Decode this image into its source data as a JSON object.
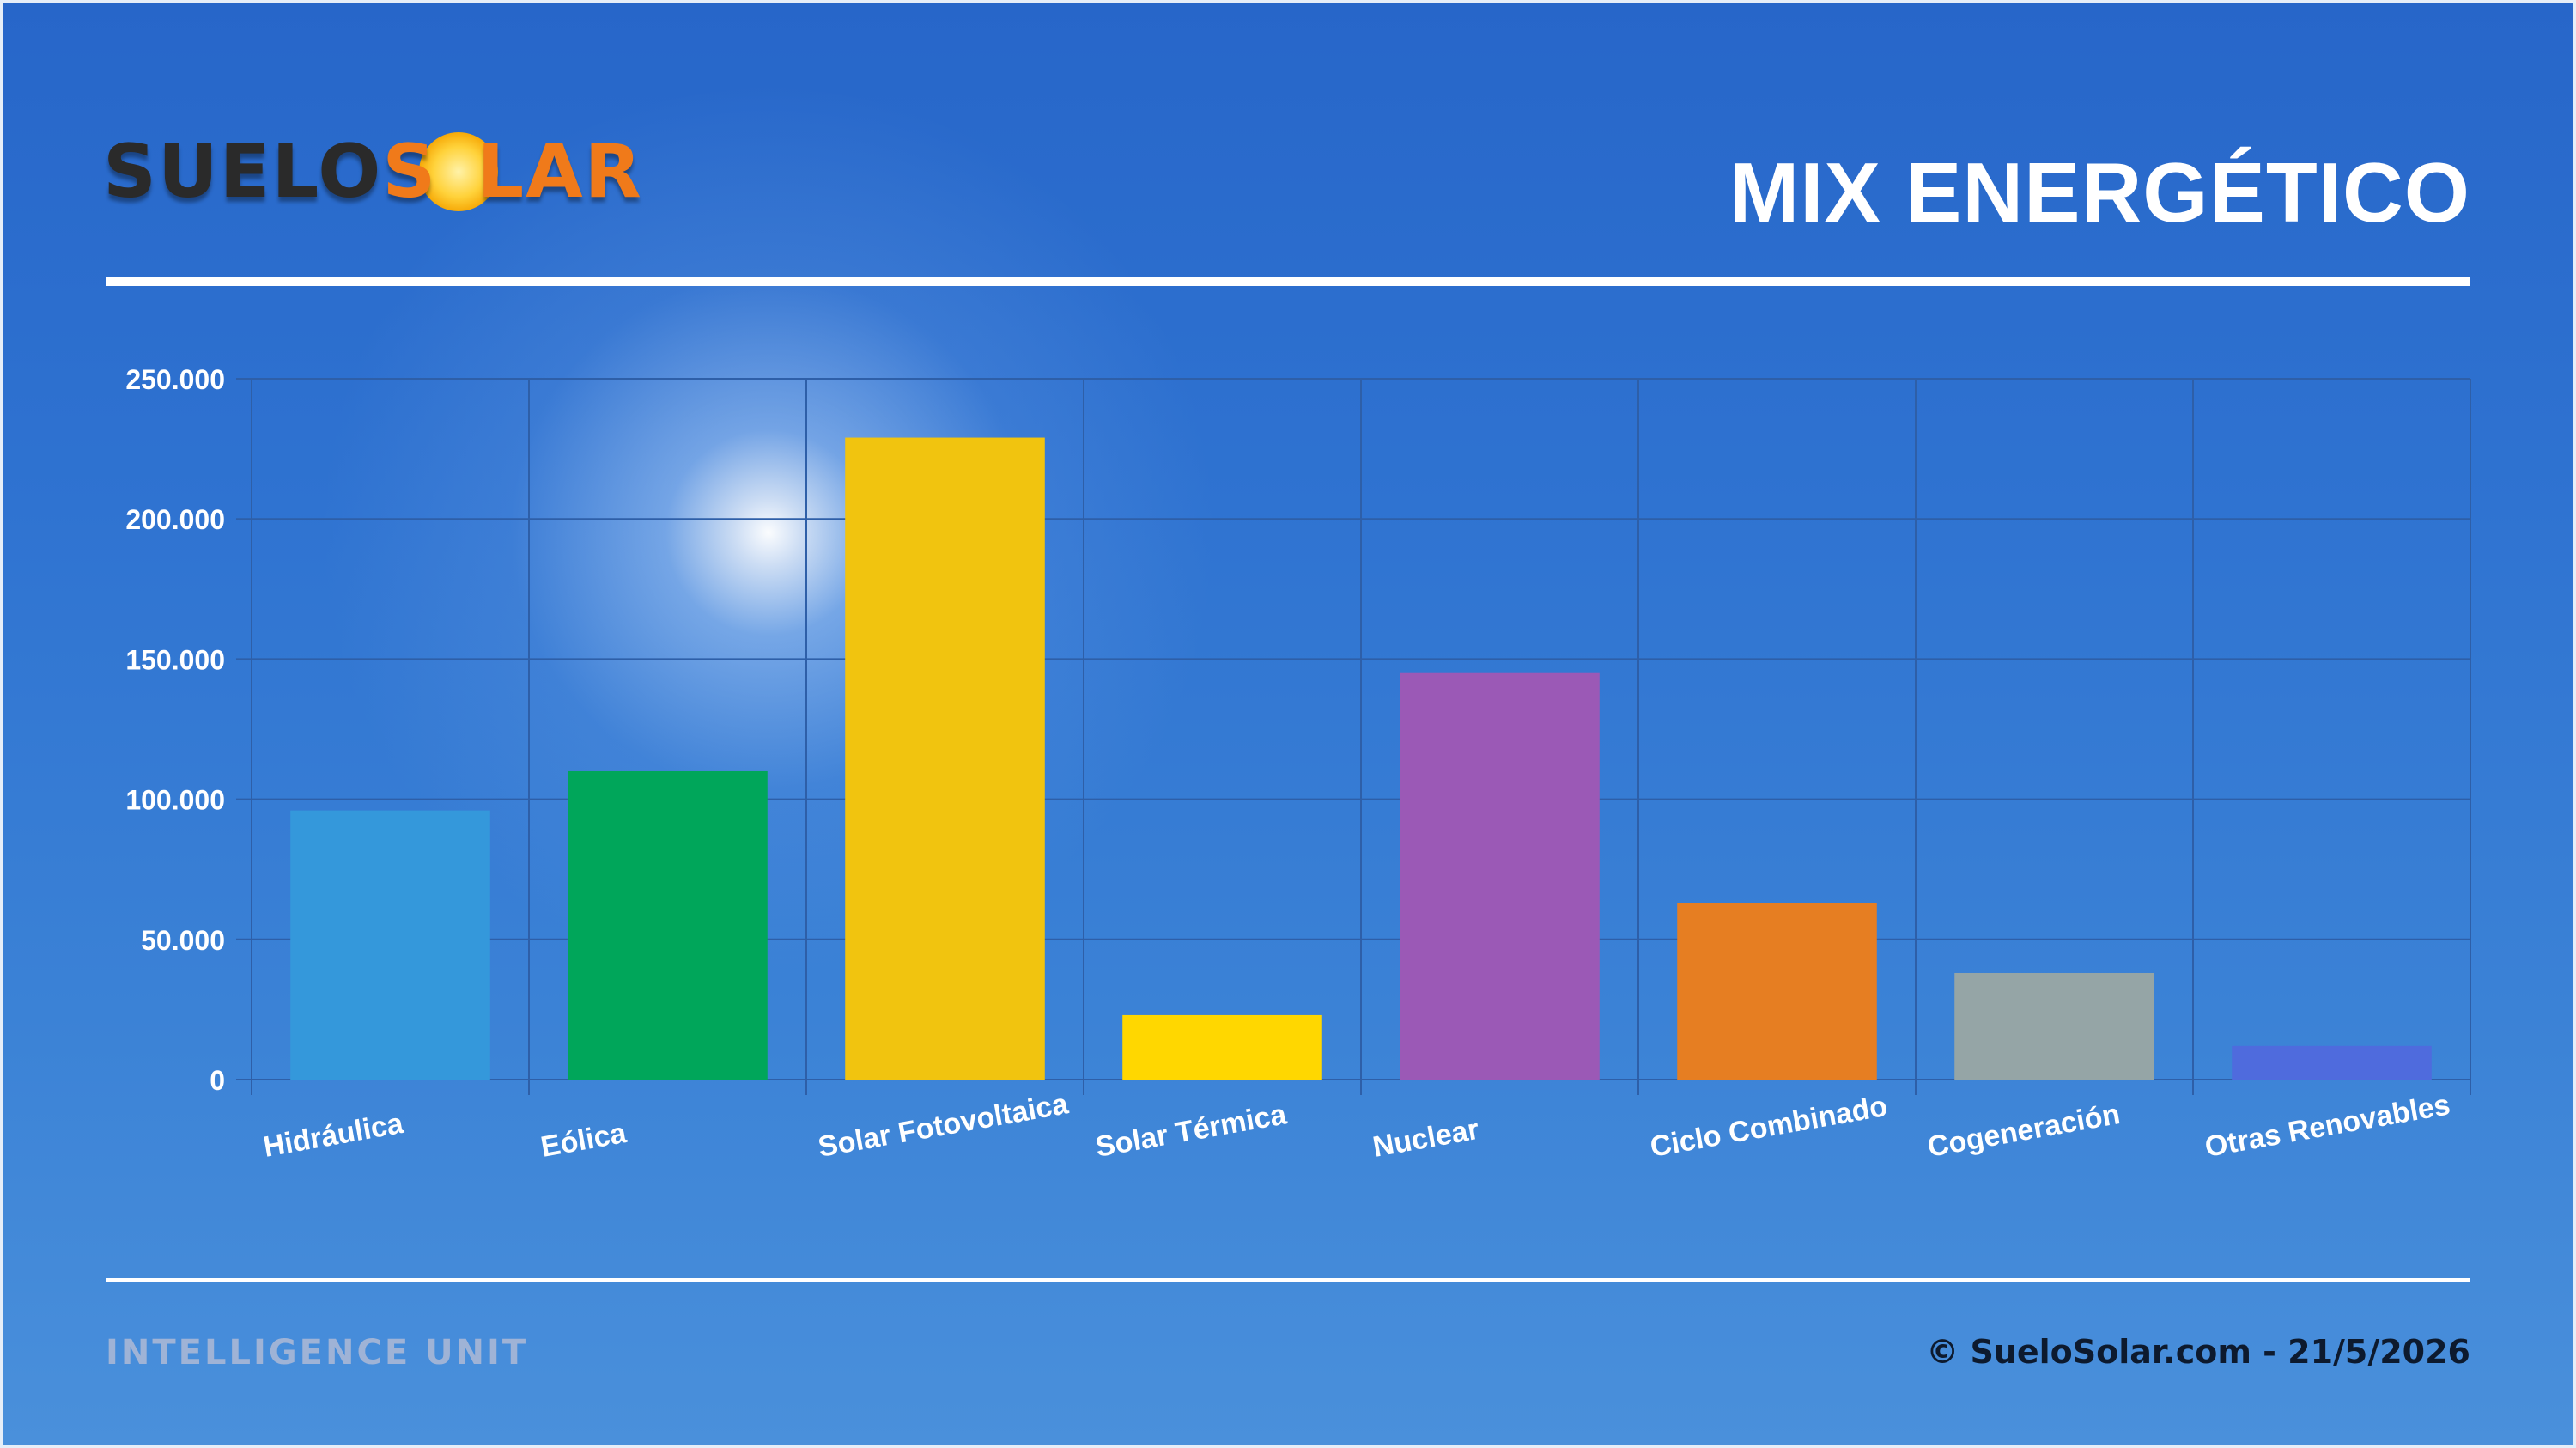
{
  "header": {
    "logo_part1": "SUELO",
    "logo_part2": "S",
    "logo_part3": "LAR",
    "title": "MIX ENERGÉTICO"
  },
  "footer": {
    "left": "INTELLIGENCE UNIT",
    "right": "© SueloSolar.com - 21/5/2026"
  },
  "colors": {
    "gridline": "#2e5fa8",
    "axis_text": "#ffffff"
  },
  "chart_data": {
    "type": "bar",
    "categories": [
      "Hidráulica",
      "Eólica",
      "Solar Fotovoltaica",
      "Solar Térmica",
      "Nuclear",
      "Ciclo Combinado",
      "Cogeneración",
      "Otras Renovables"
    ],
    "values": [
      96000,
      110000,
      229000,
      23000,
      145000,
      63000,
      38000,
      12000
    ],
    "colors": [
      "#3498db",
      "#00a65a",
      "#f1c40f",
      "#ffd700",
      "#9b59b6",
      "#e67e22",
      "#95a5a6",
      "#4f6bdd"
    ],
    "y_ticks": [
      "0",
      "50.000",
      "100.000",
      "150.000",
      "200.000",
      "250.000"
    ],
    "ylim": [
      0,
      250000
    ],
    "grid": true,
    "legend": "none"
  }
}
